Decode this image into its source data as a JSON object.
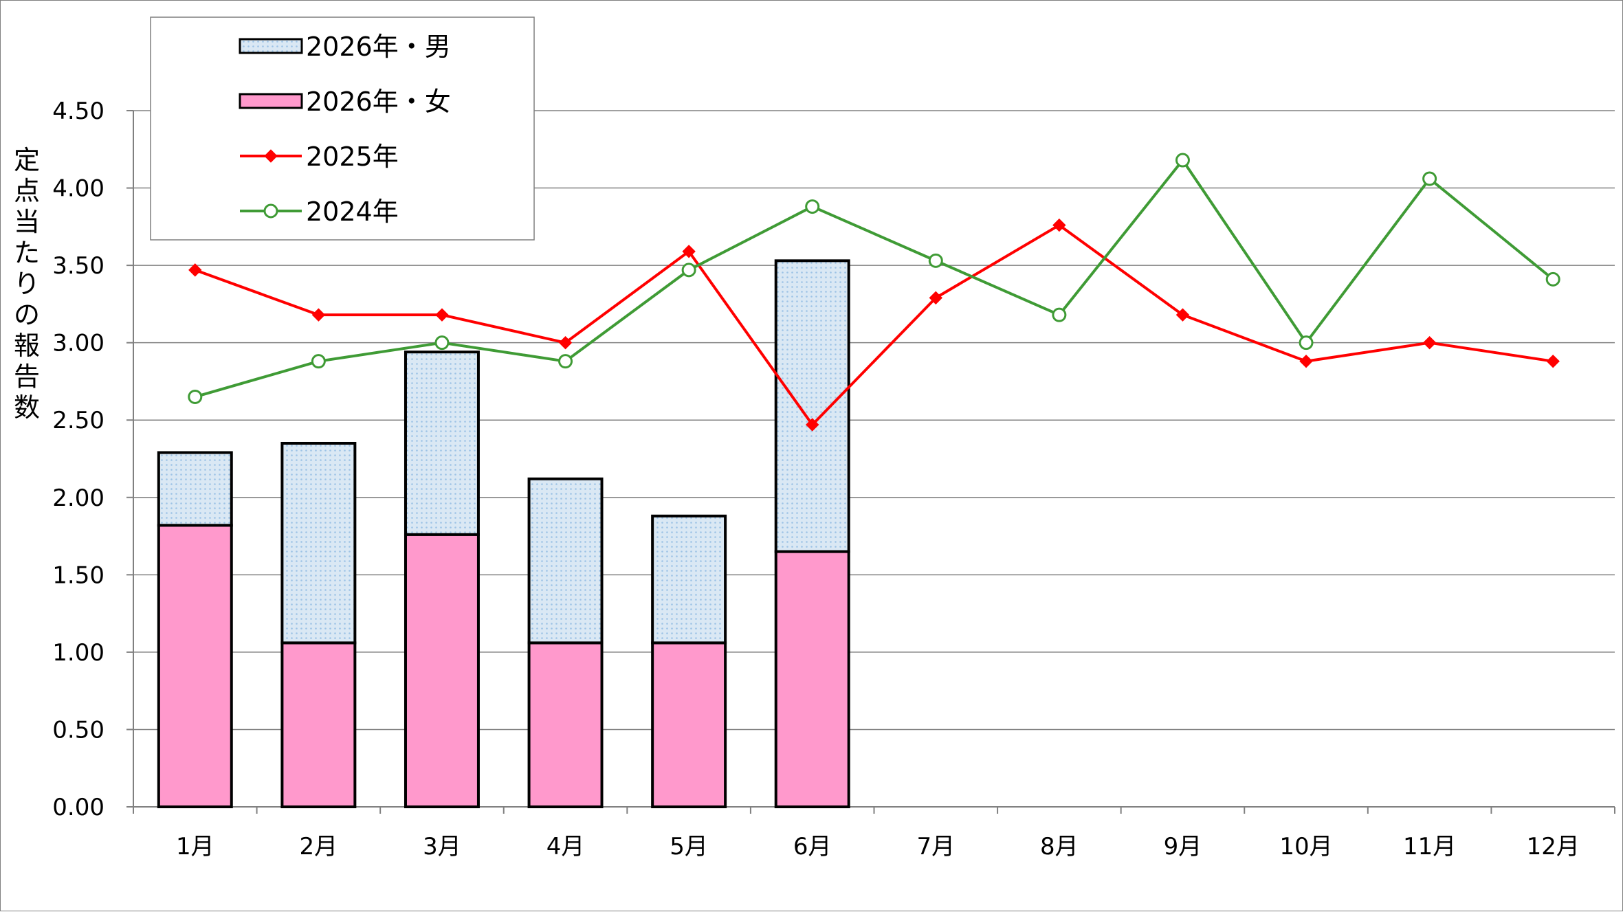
{
  "chart_data": {
    "type": "bar",
    "title": "",
    "xlabel": "",
    "ylabel": "定点当たりの報告数",
    "ylim": [
      0,
      4.5
    ],
    "ytick_step": 0.5,
    "ytick_labels": [
      "0.00",
      "0.50",
      "1.00",
      "1.50",
      "2.00",
      "2.50",
      "3.00",
      "3.50",
      "4.00",
      "4.50"
    ],
    "grid": true,
    "legend_position": "top-left",
    "categories": [
      "1月",
      "2月",
      "3月",
      "4月",
      "5月",
      "6月",
      "7月",
      "8月",
      "9月",
      "10月",
      "11月",
      "12月"
    ],
    "series": [
      {
        "name": "2026年・男",
        "kind": "stacked-bar",
        "color": "#dae8f4",
        "dot_color": "#9dc3e6",
        "values": [
          0.47,
          1.29,
          1.18,
          1.06,
          0.82,
          1.88,
          null,
          null,
          null,
          null,
          null,
          null
        ]
      },
      {
        "name": "2026年・女",
        "kind": "stacked-bar",
        "color": "#ff99cc",
        "values": [
          1.82,
          1.06,
          1.76,
          1.06,
          1.06,
          1.65,
          null,
          null,
          null,
          null,
          null,
          null
        ]
      },
      {
        "name": "2025年",
        "kind": "line",
        "color": "#ff0000",
        "marker": "diamond",
        "values": [
          3.47,
          3.18,
          3.18,
          3.0,
          3.59,
          2.47,
          3.29,
          3.76,
          3.18,
          2.88,
          3.0,
          2.88
        ]
      },
      {
        "name": "2024年",
        "kind": "line",
        "color": "#3f9b35",
        "marker": "open-circle",
        "values": [
          2.65,
          2.88,
          3.0,
          2.88,
          3.47,
          3.88,
          3.53,
          3.18,
          4.18,
          3.0,
          4.06,
          3.41
        ]
      }
    ]
  }
}
